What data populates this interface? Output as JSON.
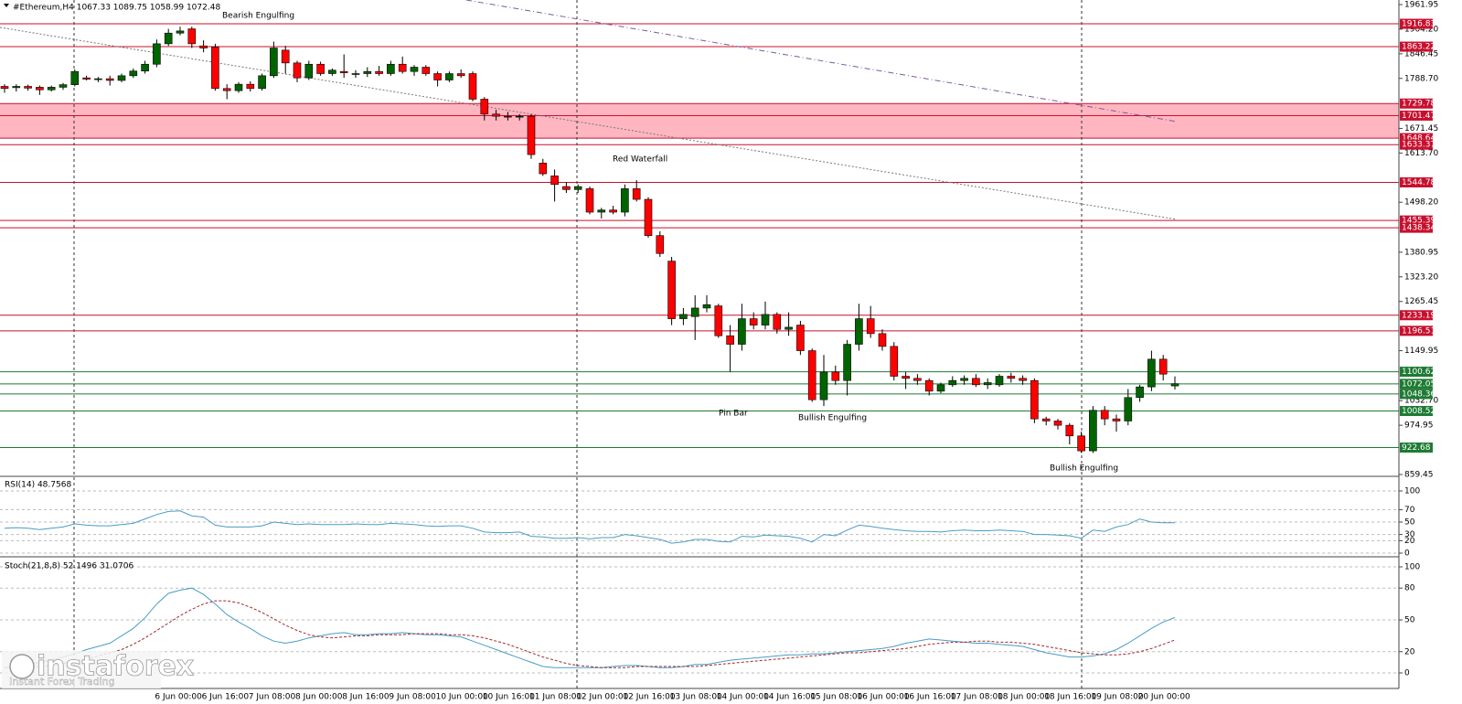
{
  "watermark": {
    "name": "instaforex",
    "tagline": "Instant Forex Trading"
  },
  "chart_data": [
    {
      "type": "candlestick",
      "title": "#Ethereum,H4  1067.33 1089.75 1058.99 1072.48",
      "up_color": "#006400",
      "down_color": "#ff0000",
      "categories": [
        null,
        null,
        null,
        null,
        null,
        null,
        null,
        null,
        null,
        null,
        null,
        null,
        null,
        "6 Jun 00:00",
        null,
        null,
        null,
        "6 Jun 16:00",
        null,
        null,
        null,
        "7 Jun 08:00",
        null,
        null,
        null,
        "8 Jun 00:00",
        null,
        null,
        null,
        "8 Jun 16:00",
        null,
        null,
        null,
        "9 Jun 08:00",
        null,
        null,
        null,
        "10 Jun 00:00",
        null,
        null,
        null,
        "10 Jun 16:00",
        null,
        null,
        null,
        "11 Jun 08:00",
        null,
        null,
        null,
        "12 Jun 00:00",
        null,
        null,
        null,
        "12 Jun 16:00",
        null,
        null,
        null,
        "13 Jun 08:00",
        null,
        null,
        null,
        "14 Jun 00:00",
        null,
        null,
        null,
        "14 Jun 16:00",
        null,
        null,
        null,
        "15 Jun 08:00",
        null,
        null,
        null,
        "16 Jun 00:00",
        null,
        null,
        null,
        "16 Jun 16:00",
        null,
        null,
        null,
        "17 Jun 08:00",
        null,
        null,
        null,
        "18 Jun 00:00",
        null,
        null,
        null,
        "18 Jun 16:00",
        null,
        null,
        null,
        "19 Jun 08:00",
        null,
        null,
        null,
        "20 Jun 00:00",
        null,
        null,
        null
      ],
      "open": [
        1770,
        1767,
        1770,
        1768,
        1762,
        1768,
        1774,
        1790,
        1787,
        1788,
        1784,
        1795,
        1806,
        1822,
        1870,
        1895,
        1905,
        1865,
        1862,
        1765,
        1760,
        1775,
        1765,
        1795,
        1855,
        1825,
        1790,
        1822,
        1800,
        1805,
        1800,
        1800,
        1805,
        1800,
        1822,
        1805,
        1815,
        1800,
        1785,
        1800,
        1800,
        1740,
        1705,
        1700,
        1698,
        1700,
        1590,
        1560,
        1535,
        1528,
        1530,
        1475,
        1480,
        1475,
        1530,
        1505,
        1420,
        1360,
        1225,
        1230,
        1250,
        1255,
        1185,
        1165,
        1225,
        1210,
        1235,
        1200,
        1210,
        1150,
        1035,
        1100,
        1080,
        1165,
        1225,
        1190,
        1160,
        1090,
        1085,
        1080,
        1055,
        1070,
        1080,
        1085,
        1070,
        1070,
        1090,
        1085,
        1080,
        990,
        985,
        975,
        950,
        915,
        1010,
        990,
        985,
        1040,
        1065,
        1130,
        1067.33
      ],
      "high": [
        1775,
        1775,
        1774,
        1772,
        1772,
        1778,
        1810,
        1795,
        1792,
        1795,
        1800,
        1812,
        1830,
        1880,
        1905,
        1910,
        1910,
        1878,
        1870,
        1775,
        1780,
        1782,
        1800,
        1875,
        1865,
        1830,
        1830,
        1828,
        1812,
        1845,
        1808,
        1815,
        1818,
        1830,
        1840,
        1820,
        1820,
        1805,
        1805,
        1810,
        1805,
        1745,
        1715,
        1710,
        1705,
        1705,
        1600,
        1575,
        1545,
        1540,
        1535,
        1485,
        1490,
        1540,
        1550,
        1510,
        1430,
        1370,
        1250,
        1280,
        1280,
        1260,
        1210,
        1260,
        1240,
        1265,
        1240,
        1240,
        1220,
        1155,
        1140,
        1115,
        1175,
        1260,
        1255,
        1200,
        1170,
        1100,
        1095,
        1085,
        1075,
        1090,
        1092,
        1095,
        1085,
        1095,
        1098,
        1092,
        1085,
        995,
        990,
        980,
        960,
        1020,
        1020,
        1000,
        1060,
        1070,
        1150,
        1140,
        1089.75
      ],
      "low": [
        1755,
        1758,
        1760,
        1750,
        1758,
        1762,
        1770,
        1784,
        1780,
        1772,
        1780,
        1790,
        1800,
        1815,
        1865,
        1890,
        1860,
        1850,
        1760,
        1740,
        1755,
        1758,
        1760,
        1790,
        1800,
        1780,
        1785,
        1795,
        1795,
        1790,
        1790,
        1792,
        1795,
        1795,
        1800,
        1795,
        1795,
        1770,
        1780,
        1790,
        1735,
        1690,
        1690,
        1690,
        1690,
        1600,
        1560,
        1500,
        1520,
        1520,
        1470,
        1460,
        1470,
        1465,
        1500,
        1415,
        1370,
        1210,
        1210,
        1175,
        1240,
        1180,
        1100,
        1150,
        1200,
        1200,
        1190,
        1185,
        1140,
        1030,
        1020,
        1070,
        1045,
        1150,
        1180,
        1150,
        1080,
        1060,
        1070,
        1045,
        1050,
        1065,
        1070,
        1065,
        1060,
        1065,
        1075,
        1070,
        980,
        975,
        965,
        930,
        910,
        910,
        975,
        960,
        975,
        1030,
        1055,
        1080,
        1058.99
      ],
      "close": [
        1765,
        1770,
        1766,
        1762,
        1768,
        1774,
        1805,
        1787,
        1788,
        1784,
        1795,
        1806,
        1822,
        1870,
        1895,
        1900,
        1870,
        1860,
        1765,
        1760,
        1775,
        1765,
        1795,
        1860,
        1825,
        1790,
        1822,
        1800,
        1808,
        1802,
        1800,
        1805,
        1800,
        1822,
        1805,
        1815,
        1800,
        1785,
        1800,
        1795,
        1740,
        1705,
        1700,
        1698,
        1700,
        1610,
        1565,
        1540,
        1528,
        1535,
        1475,
        1480,
        1475,
        1530,
        1505,
        1420,
        1378,
        1225,
        1235,
        1250,
        1258,
        1185,
        1165,
        1225,
        1210,
        1235,
        1200,
        1205,
        1150,
        1035,
        1100,
        1080,
        1165,
        1225,
        1190,
        1160,
        1090,
        1085,
        1080,
        1055,
        1070,
        1080,
        1085,
        1070,
        1075,
        1090,
        1085,
        1080,
        990,
        985,
        975,
        950,
        915,
        1010,
        990,
        985,
        1040,
        1065,
        1130,
        1095,
        1072.48
      ],
      "ylim": [
        859.45,
        1961.95
      ],
      "yticks": [
        1961.95,
        {
          "value": 1904.2,
          "label": "1904.20"
        },
        1846.45,
        {
          "value": 1788.7,
          "label": "1788.70"
        },
        1671.45,
        {
          "value": 1613.7,
          "label": "1613.70"
        },
        {
          "value": 1498.2,
          "label": "1498.20"
        },
        1380.95,
        {
          "value": 1323.2,
          "label": "1323.20"
        },
        1265.45,
        1149.95,
        {
          "value": 1032.7,
          "label": "1032.70"
        },
        974.95,
        859.45
      ],
      "grid": false,
      "zones": [
        {
          "from": 1729.78,
          "to": 1648.64,
          "color": "#ffb6c1"
        }
      ],
      "levels": [
        {
          "value": 1916.83,
          "color": "#c8102e"
        },
        {
          "value": 1863.22,
          "color": "#c8102e"
        },
        {
          "value": 1729.78,
          "color": "#c8102e"
        },
        {
          "value": 1701.47,
          "color": "#c8102e"
        },
        {
          "value": 1648.64,
          "color": "#c8102e"
        },
        {
          "value": 1633.37,
          "color": "#c8102e"
        },
        {
          "value": 1544.78,
          "color": "#c8102e"
        },
        {
          "value": 1455.39,
          "color": "#c8102e"
        },
        {
          "value": 1438.34,
          "color": "#c8102e"
        },
        {
          "value": 1233.19,
          "color": "#c8102e"
        },
        {
          "value": 1196.51,
          "color": "#c8102e"
        },
        {
          "value": 1100.62,
          "color": "#1e7b34"
        },
        {
          "value": 1072.05,
          "color": "#1e7b34"
        },
        {
          "value": 1048.36,
          "color": "#1e7b34"
        },
        {
          "value": 1008.52,
          "color": "#1e7b34"
        },
        {
          "value": 922.68,
          "color": "#1e7b34"
        }
      ],
      "annotations": [
        "Bearish Engulfing",
        "Red Waterfall",
        "Pin Bar",
        "Bullish Engulfing",
        "Bullish Engulfing"
      ]
    },
    {
      "type": "line",
      "title": "RSI(14) 48.7568",
      "color": "#4a9cc7",
      "values": [
        40,
        41,
        40,
        38,
        40,
        42,
        47,
        45,
        44,
        44,
        46,
        48,
        55,
        62,
        67,
        68,
        60,
        58,
        45,
        42,
        42,
        42,
        44,
        50,
        48,
        46,
        47,
        46,
        46,
        46,
        47,
        46,
        46,
        48,
        47,
        46,
        44,
        43,
        44,
        44,
        40,
        34,
        33,
        33,
        34,
        27,
        26,
        24,
        24,
        25,
        23,
        25,
        25,
        30,
        28,
        25,
        22,
        16,
        18,
        22,
        22,
        19,
        18,
        27,
        26,
        29,
        28,
        27,
        24,
        18,
        30,
        28,
        37,
        45,
        43,
        40,
        38,
        36,
        35,
        35,
        34,
        36,
        37,
        36,
        36,
        37,
        36,
        35,
        30,
        30,
        29,
        28,
        24,
        37,
        35,
        42,
        46,
        55,
        50,
        49,
        48.76
      ],
      "ylim": [
        0,
        100
      ],
      "yticks": [
        0,
        20,
        30,
        50,
        70,
        100
      ],
      "grid": true
    },
    {
      "type": "line",
      "title": "Stoch(21,8,8) 52.1496 31.0706",
      "series": [
        {
          "color": "#4a9cc7",
          "style": "solid",
          "values": [
            5,
            6,
            8,
            10,
            12,
            15,
            18,
            22,
            25,
            28,
            35,
            42,
            52,
            65,
            75,
            78,
            80,
            74,
            65,
            55,
            48,
            42,
            35,
            30,
            28,
            30,
            33,
            35,
            37,
            38,
            36,
            36,
            37,
            37,
            38,
            37,
            36,
            36,
            35,
            34,
            30,
            26,
            22,
            18,
            14,
            10,
            6,
            5,
            5,
            5,
            5,
            5,
            6,
            7,
            7,
            6,
            5,
            5,
            6,
            8,
            8,
            10,
            12,
            13,
            14,
            15,
            16,
            17,
            17,
            18,
            18,
            19,
            20,
            21,
            22,
            23,
            25,
            28,
            30,
            32,
            31,
            30,
            29,
            28,
            28,
            27,
            26,
            25,
            22,
            19,
            17,
            15,
            15,
            16,
            18,
            22,
            28,
            35,
            42,
            48,
            52.1496
          ]
        },
        {
          "color": "#a0282d",
          "style": "dashed",
          "values": [
            5,
            5,
            5,
            6,
            7,
            9,
            11,
            13,
            16,
            19,
            22,
            27,
            33,
            40,
            47,
            54,
            60,
            65,
            68,
            68,
            66,
            62,
            57,
            51,
            45,
            40,
            36,
            34,
            33,
            34,
            35,
            35,
            36,
            36,
            36,
            37,
            37,
            37,
            36,
            36,
            35,
            33,
            30,
            27,
            23,
            19,
            15,
            12,
            9,
            7,
            6,
            5,
            5,
            5,
            6,
            6,
            6,
            6,
            6,
            6,
            7,
            8,
            9,
            10,
            11,
            12,
            13,
            14,
            15,
            16,
            17,
            18,
            19,
            19,
            20,
            21,
            22,
            23,
            25,
            27,
            28,
            29,
            29,
            30,
            30,
            29,
            29,
            28,
            27,
            25,
            23,
            21,
            19,
            18,
            17,
            17,
            18,
            20,
            23,
            27,
            31.0706
          ]
        }
      ],
      "ylim": [
        0,
        100
      ],
      "yticks": [
        0,
        20,
        50,
        80,
        100
      ],
      "grid": true
    }
  ]
}
